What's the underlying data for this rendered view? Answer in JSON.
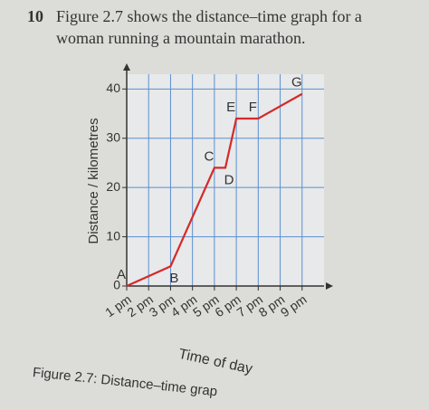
{
  "question_number": "10",
  "question_lines": [
    "Figure 2.7 shows the distance–time graph for a",
    "woman running a mountain marathon."
  ],
  "caption": "Figure 2.7: Distance–time grap",
  "chart_data": {
    "type": "line",
    "x_label": "Time of day",
    "y_label": "Distance / kilometres",
    "x": [
      13,
      15,
      17,
      17.5,
      18,
      19,
      21
    ],
    "point_labels": [
      "A",
      "B",
      "C",
      "D",
      "E",
      "F",
      "G"
    ],
    "series": [
      {
        "name": "Distance",
        "color": "#d42a2a",
        "values": [
          0,
          4,
          24,
          24,
          34,
          34,
          39
        ]
      }
    ],
    "xlim": [
      13,
      22
    ],
    "xticks": [
      {
        "value": 13,
        "label": "1 pm"
      },
      {
        "value": 14,
        "label": "2 pm"
      },
      {
        "value": 15,
        "label": "3 pm"
      },
      {
        "value": 16,
        "label": "4 pm"
      },
      {
        "value": 17,
        "label": "5 pm"
      },
      {
        "value": 18,
        "label": "6 pm"
      },
      {
        "value": 19,
        "label": "7 pm"
      },
      {
        "value": 20,
        "label": "8 pm"
      },
      {
        "value": 21,
        "label": "9 pm"
      }
    ],
    "ylim": [
      0,
      43
    ],
    "yticks": [
      0,
      10,
      20,
      30,
      40
    ],
    "grid": true
  }
}
